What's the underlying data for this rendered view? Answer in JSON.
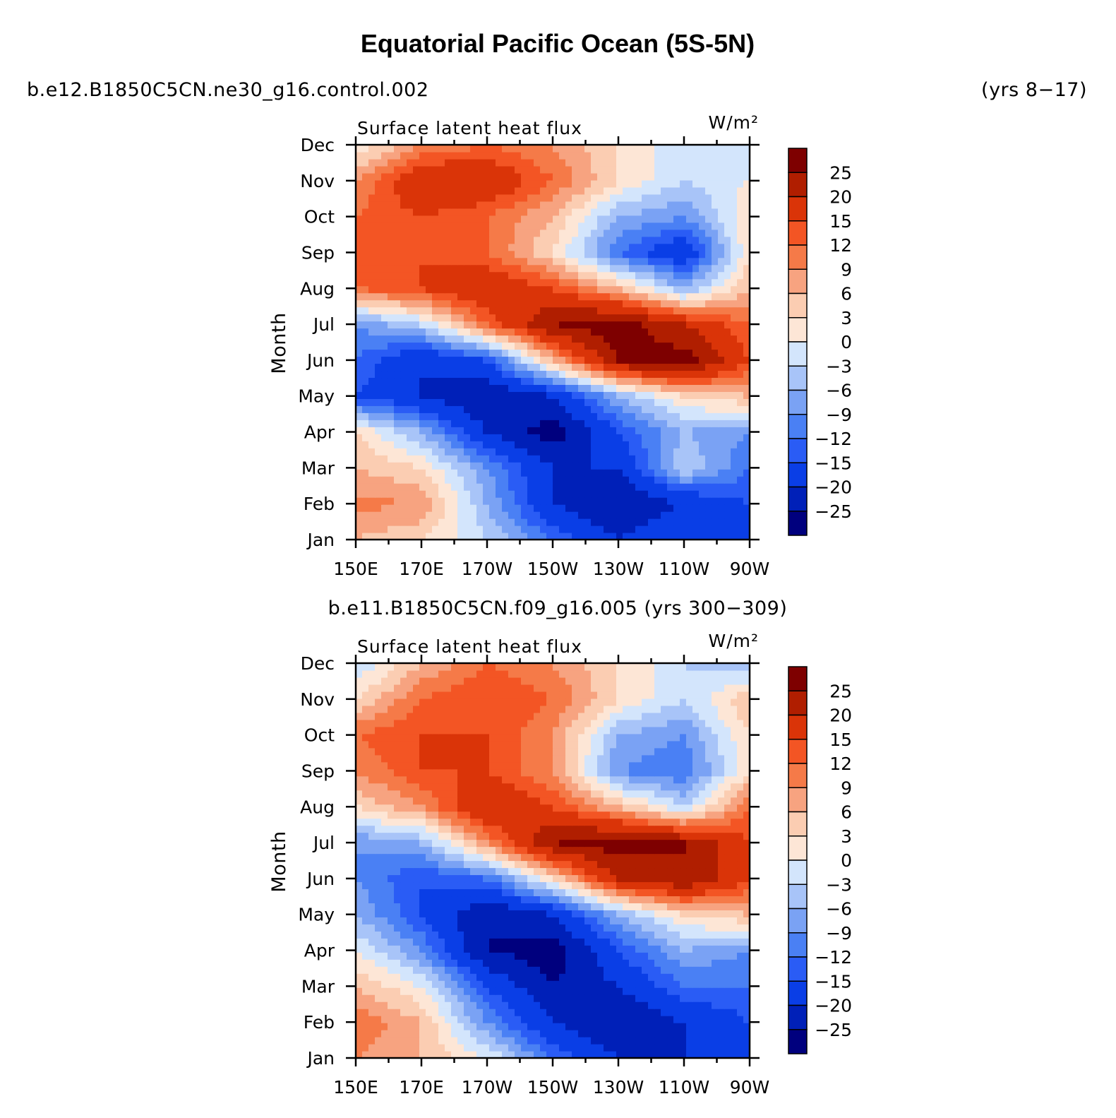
{
  "title": "Equatorial Pacific Ocean (5S-5N)",
  "colors": [
    "#00007e",
    "#0020b8",
    "#0a3ee6",
    "#2a5cf5",
    "#4a80f4",
    "#7aa2f4",
    "#a8c4f8",
    "#d3e5fc",
    "#fde6d6",
    "#fbcdb2",
    "#f7a380",
    "#f57a48",
    "#f35524",
    "#da3408",
    "#b01e00",
    "#7e0000"
  ],
  "chart_data": [
    {
      "type": "heatmap",
      "header_left": "b.e12.B1850C5CN.ne30_g16.control.002",
      "header_right": "(yrs 8−17)",
      "subtitle": "Surface latent heat flux",
      "units": "W/m²",
      "ylabel": "Month",
      "xticks": [
        "150E",
        "170E",
        "170W",
        "150W",
        "130W",
        "110W",
        "90W"
      ],
      "yticks": [
        "Jan",
        "Feb",
        "Mar",
        "Apr",
        "May",
        "Jun",
        "Jul",
        "Aug",
        "Sep",
        "Oct",
        "Nov",
        "Dec"
      ],
      "colorbar_labels": [
        "25",
        "20",
        "15",
        "12",
        "9",
        "6",
        "3",
        "0",
        "−3",
        "−6",
        "−9",
        "−12",
        "−15",
        "−20",
        "−25"
      ],
      "grid_note": "values in W/m²; rows Jan..Dec, columns 150E..90W every 10 degrees (7 columns)",
      "values": [
        [
          6,
          3,
          -3,
          -12,
          -20,
          -15,
          -20
        ],
        [
          10,
          9,
          -6,
          -20,
          -25,
          -20,
          -15
        ],
        [
          6,
          3,
          -9,
          -20,
          -20,
          -3,
          -12
        ],
        [
          3,
          -6,
          -20,
          -28,
          -15,
          -6,
          -9
        ],
        [
          -15,
          -20,
          -25,
          -20,
          -6,
          3,
          6
        ],
        [
          -12,
          -20,
          -15,
          6,
          25,
          28,
          15
        ],
        [
          -9,
          -3,
          12,
          25,
          28,
          20,
          12
        ],
        [
          12,
          15,
          20,
          15,
          6,
          -6,
          6
        ],
        [
          12,
          15,
          12,
          3,
          -12,
          -20,
          3
        ],
        [
          12,
          15,
          12,
          6,
          -6,
          -9,
          3
        ],
        [
          9,
          20,
          20,
          12,
          3,
          -3,
          0
        ],
        [
          0,
          9,
          12,
          9,
          3,
          -3,
          -3
        ]
      ]
    },
    {
      "type": "heatmap",
      "header_left": "b.e11.B1850C5CN.f09_g16.005 (yrs 300−309)",
      "subtitle": "Surface latent heat flux",
      "units": "W/m²",
      "ylabel": "Month",
      "xticks": [
        "150E",
        "170E",
        "170W",
        "150W",
        "130W",
        "110W",
        "90W"
      ],
      "yticks": [
        "Jan",
        "Feb",
        "Mar",
        "Apr",
        "May",
        "Jun",
        "Jul",
        "Aug",
        "Sep",
        "Oct",
        "Nov",
        "Dec"
      ],
      "colorbar_labels": [
        "25",
        "20",
        "15",
        "12",
        "9",
        "6",
        "3",
        "0",
        "−3",
        "−6",
        "−9",
        "−12",
        "−15",
        "−20",
        "−25"
      ],
      "grid_note": "values in W/m²; rows Jan..Dec, columns 150E..90W every 10 degrees (7 columns)",
      "values": [
        [
          9,
          6,
          0,
          -12,
          -20,
          -20,
          -20
        ],
        [
          12,
          6,
          -9,
          -20,
          -25,
          -20,
          -15
        ],
        [
          6,
          0,
          -15,
          -25,
          -20,
          -12,
          -12
        ],
        [
          0,
          -9,
          -25,
          -28,
          -15,
          -6,
          -9
        ],
        [
          -6,
          -15,
          -25,
          -20,
          -6,
          3,
          6
        ],
        [
          -9,
          -15,
          -12,
          3,
          20,
          25,
          15
        ],
        [
          -9,
          -6,
          9,
          25,
          28,
          25,
          15
        ],
        [
          3,
          9,
          20,
          15,
          6,
          -3,
          12
        ],
        [
          9,
          15,
          15,
          9,
          -9,
          -12,
          3
        ],
        [
          12,
          15,
          15,
          9,
          -6,
          -9,
          3
        ],
        [
          3,
          12,
          15,
          12,
          3,
          -3,
          6
        ],
        [
          -3,
          6,
          12,
          9,
          3,
          -3,
          -6
        ]
      ]
    }
  ]
}
